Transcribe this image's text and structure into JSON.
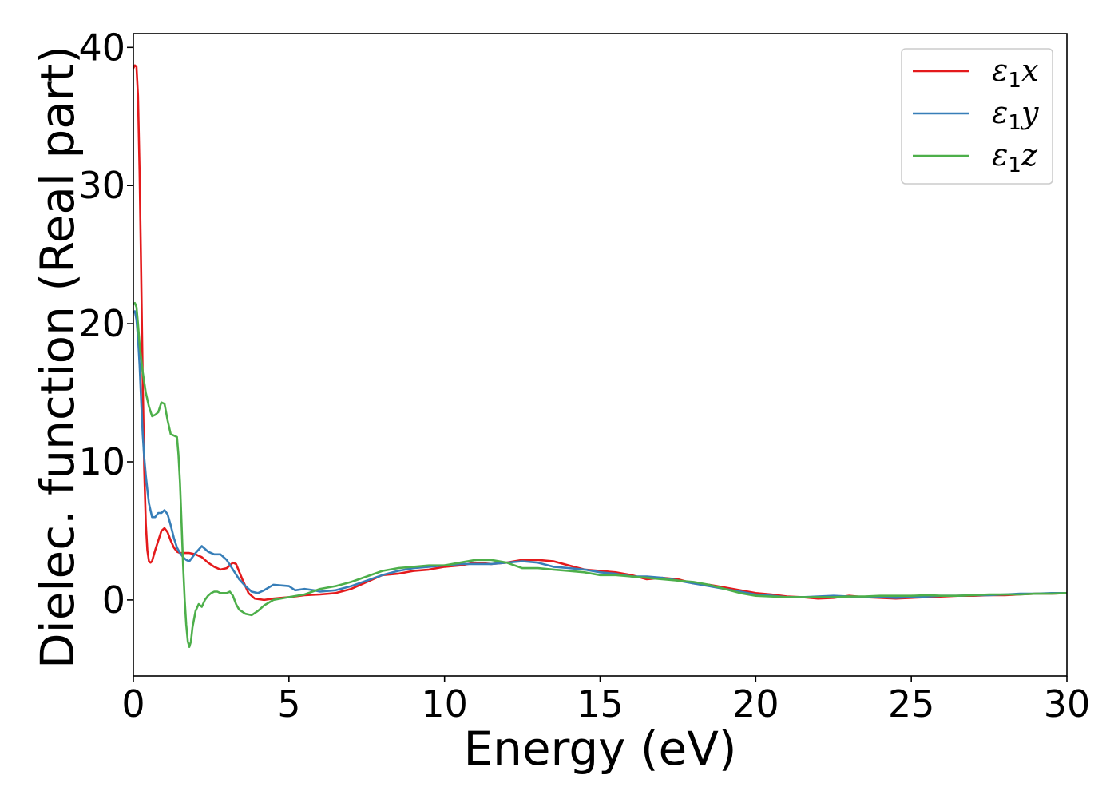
{
  "chart_data": {
    "type": "line",
    "title": "",
    "xlabel": "Energy (eV)",
    "ylabel": "Dielec. function (Real part)",
    "xlim": [
      0,
      30
    ],
    "ylim": [
      -5.5,
      41
    ],
    "xticks": [
      "0",
      "5",
      "10",
      "15",
      "20",
      "25",
      "30"
    ],
    "yticks": [
      "0",
      "10",
      "20",
      "30",
      "40"
    ],
    "grid": false,
    "legend_position": "top-right",
    "series": [
      {
        "name": "ε1x",
        "legend_symbol": "ε",
        "legend_sub": "1",
        "legend_var": "x",
        "color": "#e41a1c",
        "x": [
          0.0,
          0.05,
          0.1,
          0.15,
          0.2,
          0.25,
          0.3,
          0.35,
          0.4,
          0.45,
          0.5,
          0.55,
          0.6,
          0.65,
          0.7,
          0.8,
          0.9,
          1.0,
          1.1,
          1.2,
          1.3,
          1.4,
          1.5,
          1.6,
          1.7,
          1.8,
          2.0,
          2.2,
          2.4,
          2.6,
          2.8,
          3.0,
          3.2,
          3.3,
          3.5,
          3.7,
          3.9,
          4.2,
          4.5,
          5.0,
          5.5,
          6.0,
          6.5,
          7.0,
          7.5,
          8.0,
          8.5,
          9.0,
          9.5,
          10.0,
          10.5,
          11.0,
          11.5,
          12.0,
          12.5,
          13.0,
          13.5,
          14.0,
          14.5,
          15.0,
          15.5,
          16.0,
          16.5,
          17.0,
          17.5,
          18.0,
          18.5,
          19.0,
          19.5,
          20.0,
          20.5,
          21.0,
          21.5,
          22.0,
          22.5,
          23.0,
          23.5,
          24.0,
          24.5,
          25.0,
          25.5,
          26.0,
          26.5,
          27.0,
          27.5,
          28.0,
          28.5,
          29.0,
          29.5,
          30.0
        ],
        "y": [
          38.5,
          38.7,
          38.6,
          36.5,
          31.0,
          24.0,
          16.0,
          9.5,
          5.5,
          3.6,
          2.8,
          2.7,
          2.8,
          3.2,
          3.6,
          4.3,
          5.0,
          5.2,
          4.9,
          4.3,
          3.8,
          3.5,
          3.4,
          3.4,
          3.4,
          3.4,
          3.3,
          3.1,
          2.7,
          2.4,
          2.2,
          2.3,
          2.7,
          2.6,
          1.5,
          0.5,
          0.1,
          0.0,
          0.1,
          0.2,
          0.35,
          0.4,
          0.5,
          0.8,
          1.3,
          1.8,
          1.9,
          2.1,
          2.2,
          2.4,
          2.5,
          2.7,
          2.6,
          2.7,
          2.9,
          2.9,
          2.8,
          2.5,
          2.2,
          2.1,
          2.0,
          1.8,
          1.5,
          1.6,
          1.5,
          1.2,
          1.1,
          0.9,
          0.7,
          0.5,
          0.4,
          0.25,
          0.2,
          0.1,
          0.15,
          0.3,
          0.2,
          0.15,
          0.1,
          0.15,
          0.2,
          0.25,
          0.3,
          0.3,
          0.35,
          0.35,
          0.4,
          0.45,
          0.45,
          0.5
        ]
      },
      {
        "name": "ε1y",
        "legend_symbol": "ε",
        "legend_sub": "1",
        "legend_var": "y",
        "color": "#377eb8",
        "x": [
          0.0,
          0.05,
          0.1,
          0.15,
          0.2,
          0.25,
          0.3,
          0.35,
          0.4,
          0.45,
          0.5,
          0.6,
          0.7,
          0.8,
          0.9,
          1.0,
          1.1,
          1.2,
          1.3,
          1.4,
          1.5,
          1.6,
          1.7,
          1.8,
          1.9,
          2.0,
          2.2,
          2.4,
          2.6,
          2.8,
          3.0,
          3.2,
          3.4,
          3.6,
          3.8,
          4.0,
          4.2,
          4.5,
          5.0,
          5.2,
          5.5,
          5.8,
          6.0,
          6.5,
          7.0,
          7.5,
          8.0,
          8.5,
          9.0,
          9.5,
          10.0,
          10.5,
          11.0,
          11.5,
          12.0,
          12.5,
          13.0,
          13.5,
          14.0,
          14.5,
          15.0,
          15.5,
          16.0,
          16.5,
          17.0,
          17.5,
          18.0,
          18.5,
          19.0,
          19.5,
          20.0,
          20.5,
          21.0,
          21.5,
          22.0,
          22.5,
          23.0,
          23.5,
          24.0,
          24.5,
          25.0,
          25.5,
          26.0,
          26.5,
          27.0,
          27.5,
          28.0,
          28.5,
          29.0,
          29.5,
          30.0
        ],
        "y": [
          20.8,
          20.9,
          20.3,
          19.0,
          17.0,
          14.5,
          12.0,
          10.3,
          9.0,
          8.0,
          7.0,
          6.0,
          6.0,
          6.3,
          6.3,
          6.5,
          6.2,
          5.4,
          4.5,
          3.8,
          3.4,
          3.1,
          2.9,
          2.8,
          3.1,
          3.4,
          3.9,
          3.5,
          3.3,
          3.3,
          2.9,
          2.2,
          1.5,
          1.0,
          0.6,
          0.5,
          0.7,
          1.1,
          1.0,
          0.7,
          0.8,
          0.7,
          0.6,
          0.7,
          1.0,
          1.4,
          1.8,
          2.1,
          2.3,
          2.4,
          2.5,
          2.6,
          2.6,
          2.6,
          2.7,
          2.8,
          2.7,
          2.4,
          2.3,
          2.2,
          2.0,
          1.9,
          1.7,
          1.7,
          1.6,
          1.4,
          1.2,
          1.0,
          0.8,
          0.6,
          0.4,
          0.3,
          0.2,
          0.2,
          0.25,
          0.3,
          0.25,
          0.2,
          0.2,
          0.15,
          0.2,
          0.25,
          0.3,
          0.3,
          0.35,
          0.35,
          0.4,
          0.45,
          0.45,
          0.5,
          0.5
        ]
      },
      {
        "name": "ε1z",
        "legend_symbol": "ε",
        "legend_sub": "1",
        "legend_var": "z",
        "color": "#4daf4a",
        "x": [
          0.0,
          0.05,
          0.1,
          0.15,
          0.2,
          0.3,
          0.4,
          0.5,
          0.6,
          0.7,
          0.8,
          0.9,
          1.0,
          1.1,
          1.2,
          1.3,
          1.4,
          1.45,
          1.5,
          1.55,
          1.6,
          1.65,
          1.7,
          1.75,
          1.8,
          1.85,
          1.9,
          2.0,
          2.1,
          2.2,
          2.3,
          2.4,
          2.5,
          2.6,
          2.7,
          2.8,
          2.9,
          3.0,
          3.1,
          3.2,
          3.3,
          3.4,
          3.6,
          3.8,
          4.0,
          4.2,
          4.5,
          5.0,
          5.5,
          6.0,
          6.5,
          7.0,
          7.5,
          8.0,
          8.5,
          9.0,
          9.5,
          10.0,
          10.5,
          11.0,
          11.5,
          12.0,
          12.5,
          13.0,
          13.5,
          14.0,
          14.5,
          15.0,
          15.5,
          16.0,
          16.5,
          17.0,
          17.5,
          18.0,
          18.5,
          19.0,
          19.5,
          20.0,
          20.5,
          21.0,
          21.5,
          22.0,
          22.5,
          23.0,
          23.5,
          24.0,
          24.5,
          25.0,
          25.5,
          26.0,
          26.5,
          27.0,
          27.5,
          28.0,
          28.5,
          29.0,
          29.5,
          30.0
        ],
        "y": [
          21.4,
          21.5,
          21.2,
          20.0,
          18.5,
          16.5,
          15.0,
          14.0,
          13.3,
          13.4,
          13.6,
          14.3,
          14.2,
          13.0,
          12.0,
          11.9,
          11.8,
          10.5,
          8.5,
          5.5,
          2.5,
          0.0,
          -1.8,
          -3.0,
          -3.4,
          -3.0,
          -2.0,
          -0.8,
          -0.3,
          -0.5,
          0.0,
          0.3,
          0.5,
          0.6,
          0.6,
          0.5,
          0.5,
          0.5,
          0.6,
          0.3,
          -0.3,
          -0.7,
          -1.0,
          -1.1,
          -0.8,
          -0.4,
          0.0,
          0.2,
          0.4,
          0.8,
          1.0,
          1.3,
          1.7,
          2.1,
          2.3,
          2.4,
          2.5,
          2.5,
          2.7,
          2.9,
          2.9,
          2.7,
          2.3,
          2.3,
          2.2,
          2.1,
          2.0,
          1.8,
          1.8,
          1.7,
          1.6,
          1.5,
          1.4,
          1.3,
          1.1,
          0.8,
          0.5,
          0.3,
          0.25,
          0.2,
          0.2,
          0.2,
          0.2,
          0.25,
          0.25,
          0.3,
          0.3,
          0.3,
          0.35,
          0.3,
          0.3,
          0.35,
          0.4,
          0.4,
          0.4,
          0.45,
          0.45,
          0.5
        ]
      }
    ]
  }
}
